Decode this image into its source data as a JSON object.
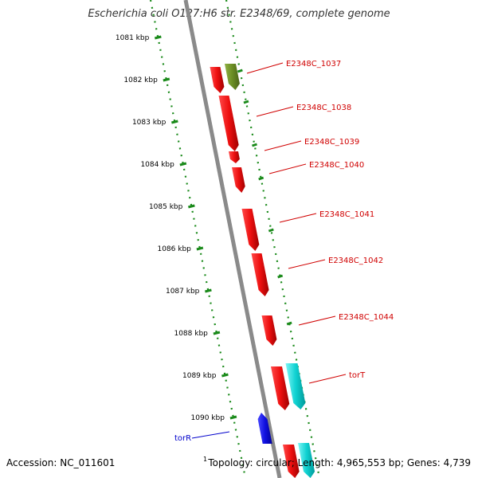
{
  "title": "Escherichia coli O127:H6 str. E2348/69, complete genome",
  "footer": {
    "accession": "Accession: NC_011601",
    "mark": "1",
    "summary": "Topology: circular; Length: 4,965,553 bp; Genes: 4,739"
  },
  "colors": {
    "backbone": "#8a8a8a",
    "tick": "#1a8a1a",
    "forward_gene": "#e01010",
    "reverse_gene_blue": "#1010e0",
    "olive_gene": "#6b8e23",
    "cyan_gene": "#00c8c8",
    "label_red": "#d00000",
    "label_blue": "#0000cc"
  },
  "kbp_ticks": [
    "1081 kbp",
    "1082 kbp",
    "1083 kbp",
    "1084 kbp",
    "1085 kbp",
    "1086 kbp",
    "1087 kbp",
    "1088 kbp",
    "1089 kbp",
    "1090 kbp"
  ],
  "gene_labels": [
    {
      "text": "E2348C_1037",
      "color": "red"
    },
    {
      "text": "E2348C_1038",
      "color": "red"
    },
    {
      "text": "E2348C_1039",
      "color": "red"
    },
    {
      "text": "E2348C_1040",
      "color": "red"
    },
    {
      "text": "E2348C_1041",
      "color": "red"
    },
    {
      "text": "E2348C_1042",
      "color": "red"
    },
    {
      "text": "E2348C_1044",
      "color": "red"
    },
    {
      "text": "torT",
      "color": "red"
    },
    {
      "text": "torR",
      "color": "blue"
    }
  ],
  "genes": [
    {
      "strand": "forward",
      "color": "red"
    },
    {
      "strand": "forward",
      "color": "olive"
    },
    {
      "strand": "forward",
      "color": "red"
    },
    {
      "strand": "forward",
      "color": "red"
    },
    {
      "strand": "forward",
      "color": "red"
    },
    {
      "strand": "forward",
      "color": "red"
    },
    {
      "strand": "forward",
      "color": "red"
    },
    {
      "strand": "forward",
      "color": "red"
    },
    {
      "strand": "forward",
      "color": "red"
    },
    {
      "strand": "forward",
      "color": "cyan"
    },
    {
      "strand": "reverse",
      "color": "blue"
    },
    {
      "strand": "forward",
      "color": "red"
    },
    {
      "strand": "forward",
      "color": "cyan"
    }
  ]
}
